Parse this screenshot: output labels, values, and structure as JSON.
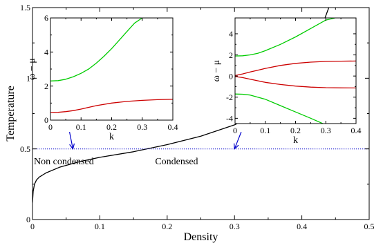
{
  "chart_data": [
    {
      "type": "line",
      "xlabel": "Density",
      "ylabel": "Temperature",
      "xlim": [
        0,
        0.5
      ],
      "ylim": [
        0,
        1.5
      ],
      "x_ticks": [
        "0",
        "0.1",
        "0.2",
        "0.3",
        "0.4",
        "0.5"
      ],
      "y_ticks": [
        "0",
        "0.5",
        "1",
        "1.5"
      ],
      "series": [
        {
          "color": "#000000",
          "style": "solid",
          "x": [
            0,
            0.001,
            0.003,
            0.006,
            0.01,
            0.02,
            0.04,
            0.07,
            0.1,
            0.15,
            0.2,
            0.25,
            0.3,
            0.35,
            0.4,
            0.42,
            0.44
          ],
          "y": [
            0.12,
            0.2,
            0.25,
            0.28,
            0.3,
            0.33,
            0.37,
            0.41,
            0.44,
            0.48,
            0.53,
            0.59,
            0.67,
            0.79,
            1.04,
            1.24,
            1.5
          ]
        },
        {
          "color": "#0000cc",
          "style": "dotted",
          "x": [
            0,
            0.5
          ],
          "y": [
            0.5,
            0.5
          ]
        }
      ],
      "annotations": [
        {
          "text": "Non condensed",
          "x": 0,
          "y": 0.46
        },
        {
          "text": "Condensed",
          "x": 0.18,
          "y": 0.46
        }
      ],
      "arrows": [
        {
          "color": "#0000cc",
          "from": [
            0.055,
            0.62
          ],
          "to": [
            0.06,
            0.5
          ]
        },
        {
          "color": "#0000cc",
          "from": [
            0.31,
            0.62
          ],
          "to": [
            0.3,
            0.5
          ]
        }
      ]
    },
    {
      "type": "line",
      "xlabel": "k",
      "ylabel": "ω − μ",
      "xlim": [
        0,
        0.4
      ],
      "ylim": [
        0,
        6
      ],
      "x_ticks": [
        "0",
        "0.1",
        "0.2",
        "0.3",
        "0.4"
      ],
      "y_ticks": [
        "0",
        "2",
        "4",
        "6"
      ],
      "series": [
        {
          "color": "#00cc00",
          "x": [
            0,
            0.025,
            0.05,
            0.075,
            0.1,
            0.125,
            0.15,
            0.175,
            0.2,
            0.225,
            0.25,
            0.275,
            0.3
          ],
          "y": [
            2.3,
            2.32,
            2.4,
            2.55,
            2.75,
            3.0,
            3.35,
            3.75,
            4.2,
            4.7,
            5.2,
            5.7,
            6.0
          ]
        },
        {
          "color": "#cc0000",
          "x": [
            0,
            0.025,
            0.05,
            0.075,
            0.1,
            0.125,
            0.15,
            0.2,
            0.25,
            0.3,
            0.35,
            0.4
          ],
          "y": [
            0.45,
            0.46,
            0.5,
            0.56,
            0.65,
            0.75,
            0.85,
            1.0,
            1.1,
            1.16,
            1.2,
            1.23
          ]
        }
      ]
    },
    {
      "type": "line",
      "xlabel": "k",
      "ylabel": "ω − μ",
      "xlim": [
        0,
        0.4
      ],
      "ylim": [
        -4.5,
        5.5
      ],
      "x_ticks": [
        "0",
        "0.1",
        "0.2",
        "0.3",
        "0.4"
      ],
      "y_ticks": [
        "-4",
        "-2",
        "0",
        "2",
        "4"
      ],
      "series": [
        {
          "color": "#00cc00",
          "x": [
            0,
            0.025,
            0.05,
            0.075,
            0.1,
            0.15,
            0.2,
            0.25,
            0.3,
            0.33
          ],
          "y": [
            1.9,
            1.92,
            2.0,
            2.15,
            2.4,
            3.0,
            3.7,
            4.5,
            5.3,
            5.5
          ]
        },
        {
          "color": "#00cc00",
          "x": [
            0,
            0.025,
            0.05,
            0.075,
            0.1,
            0.15,
            0.2,
            0.25,
            0.29
          ],
          "y": [
            -1.7,
            -1.72,
            -1.8,
            -2.0,
            -2.2,
            -2.8,
            -3.4,
            -4.0,
            -4.5
          ]
        },
        {
          "color": "#cc0000",
          "x": [
            0,
            0.025,
            0.05,
            0.075,
            0.1,
            0.15,
            0.2,
            0.25,
            0.3,
            0.35,
            0.4
          ],
          "y": [
            0.05,
            0.2,
            0.38,
            0.55,
            0.72,
            1.0,
            1.2,
            1.32,
            1.38,
            1.41,
            1.42
          ]
        },
        {
          "color": "#cc0000",
          "x": [
            0,
            0.025,
            0.05,
            0.075,
            0.1,
            0.15,
            0.2,
            0.25,
            0.3,
            0.35,
            0.4
          ],
          "y": [
            -0.05,
            -0.15,
            -0.3,
            -0.45,
            -0.6,
            -0.8,
            -0.95,
            -1.05,
            -1.1,
            -1.12,
            -1.13
          ]
        }
      ]
    }
  ]
}
